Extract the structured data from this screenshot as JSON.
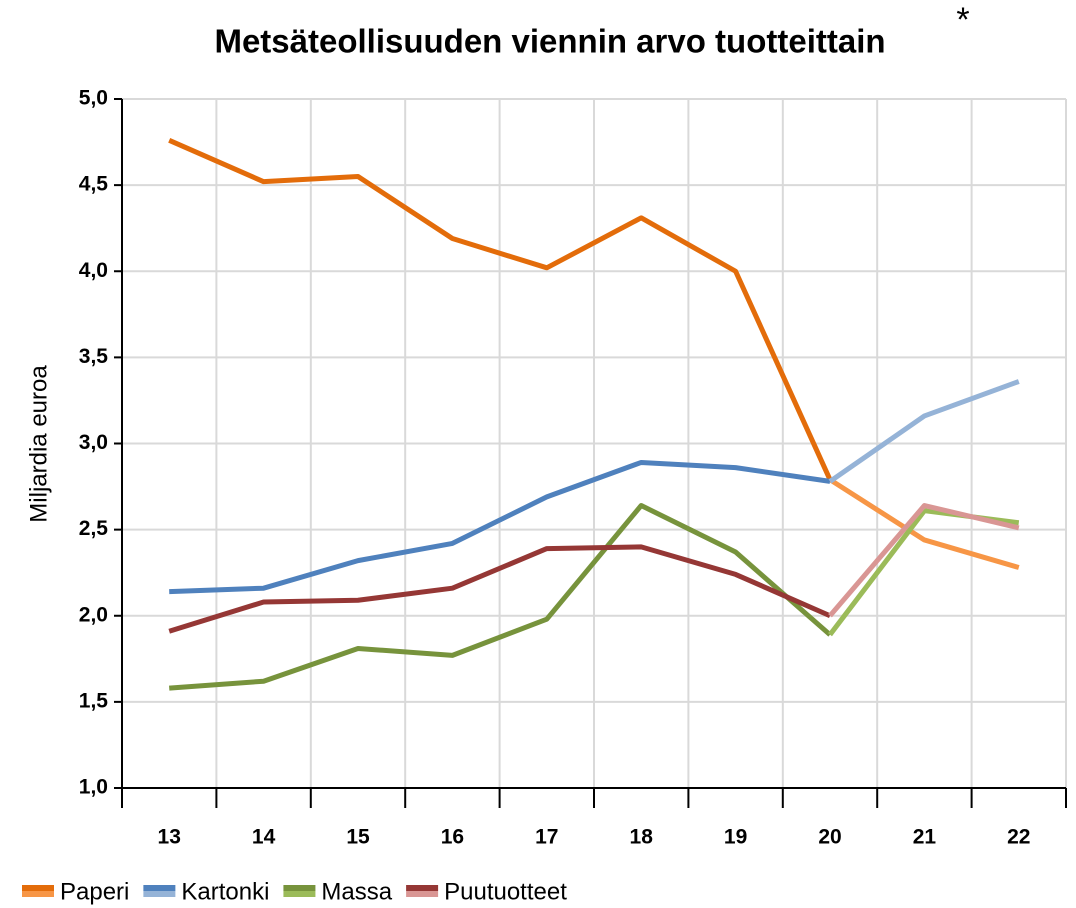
{
  "chart_data": {
    "type": "line",
    "title": "Metsäteollisuuden viennin arvo tuotteittain",
    "title_mark": "*",
    "y_label": "Miljardia euroa",
    "categories": [
      "13",
      "14",
      "15",
      "16",
      "17",
      "18",
      "19",
      "20",
      "21",
      "22"
    ],
    "forecast_from": "20",
    "series": [
      {
        "name": "Paperi",
        "color": "#e36c0a",
        "forecast_color": "#f79646",
        "values": [
          4.76,
          4.52,
          4.55,
          4.19,
          4.02,
          4.31,
          4.0,
          2.79,
          2.44,
          2.28
        ]
      },
      {
        "name": "Kartonki",
        "color": "#4f81bd",
        "forecast_color": "#95b3d7",
        "values": [
          2.14,
          2.16,
          2.32,
          2.42,
          2.69,
          2.89,
          2.86,
          2.78,
          3.16,
          3.36
        ]
      },
      {
        "name": "Massa",
        "color": "#77933c",
        "forecast_color": "#9bbb59",
        "values": [
          1.58,
          1.62,
          1.81,
          1.77,
          1.98,
          2.64,
          2.37,
          1.89,
          2.61,
          2.54
        ]
      },
      {
        "name": "Puutuotteet",
        "color": "#953735",
        "forecast_color": "#d99694",
        "values": [
          1.91,
          2.08,
          2.09,
          2.16,
          2.39,
          2.4,
          2.24,
          2.0,
          2.64,
          2.51
        ]
      }
    ],
    "ylim": [
      1,
      5
    ],
    "yticks": [
      {
        "value": 1,
        "label": "1,0"
      },
      {
        "value": 1.5,
        "label": "1,5"
      },
      {
        "value": 2,
        "label": "2,0"
      },
      {
        "value": 2.5,
        "label": "2,5"
      },
      {
        "value": 3,
        "label": "3,0"
      },
      {
        "value": 3.5,
        "label": "3,5"
      },
      {
        "value": 4,
        "label": "4,0"
      },
      {
        "value": 4.5,
        "label": "4,5"
      },
      {
        "value": 5,
        "label": "5,0"
      }
    ],
    "grid": true
  }
}
